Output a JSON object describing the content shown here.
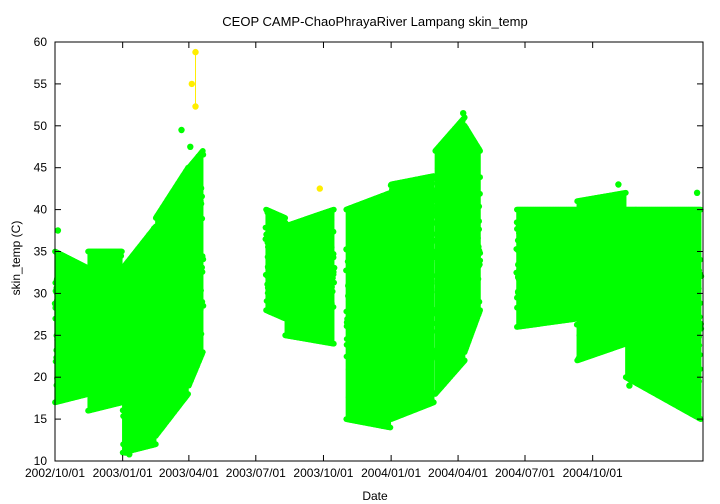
{
  "chart_data": {
    "type": "scatter",
    "title": "CEOP CAMP-ChaoPhrayaRiver Lampang  skin_temp",
    "xlabel": "Date",
    "ylabel": "skin_temp (C)",
    "ylim": [
      10,
      60
    ],
    "xlim": [
      "2002-10-01",
      "2005-02-28"
    ],
    "y_ticks": [
      10,
      15,
      20,
      25,
      30,
      35,
      40,
      45,
      50,
      55,
      60
    ],
    "x_ticks": [
      {
        "date": "2002-10-01",
        "label": "2002/10/01"
      },
      {
        "date": "2003-01-01",
        "label": "2003/01/01"
      },
      {
        "date": "2003-04-01",
        "label": "2003/04/01"
      },
      {
        "date": "2003-07-01",
        "label": "2003/07/01"
      },
      {
        "date": "2003-10-01",
        "label": "2003/10/01"
      },
      {
        "date": "2004-01-01",
        "label": "2004/01/01"
      },
      {
        "date": "2004-04-01",
        "label": "2004/04/01"
      },
      {
        "date": "2004-07-01",
        "label": "2004/07/01"
      },
      {
        "date": "2004-10-01",
        "label": "2004/10/01"
      }
    ],
    "grid": false,
    "colors": {
      "main": "#00ff00",
      "flagged": "#ffee00"
    },
    "series": [
      {
        "segments": [
          {
            "start": "2002-10-01",
            "end": "2002-11-15",
            "min": [
              17,
              18
            ],
            "max": [
              35,
              33
            ]
          },
          {
            "start": "2002-11-15",
            "end": "2002-12-31",
            "min": [
              16,
              17
            ],
            "max": [
              35,
              35
            ]
          },
          {
            "start": "2003-01-01",
            "end": "2003-02-15",
            "min": [
              11,
              12
            ],
            "max": [
              33,
              38
            ]
          },
          {
            "start": "2003-02-15",
            "end": "2003-03-31",
            "min": [
              13,
              18
            ],
            "max": [
              39,
              45
            ]
          },
          {
            "start": "2003-04-01",
            "end": "2003-04-20",
            "min": [
              19,
              23
            ],
            "max": [
              45,
              47
            ]
          },
          {
            "start": "2003-07-15",
            "end": "2003-08-10",
            "min": [
              28,
              27
            ],
            "max": [
              40,
              39
            ]
          },
          {
            "start": "2003-08-10",
            "end": "2003-10-15",
            "min": [
              25,
              24
            ],
            "max": [
              38,
              40
            ]
          },
          {
            "start": "2003-11-01",
            "end": "2003-12-31",
            "min": [
              15,
              14
            ],
            "max": [
              40,
              42
            ]
          },
          {
            "start": "2004-01-01",
            "end": "2004-02-28",
            "min": [
              15,
              17
            ],
            "max": [
              43,
              44
            ]
          },
          {
            "start": "2004-03-01",
            "end": "2004-04-10",
            "min": [
              18,
              22
            ],
            "max": [
              47,
              51
            ]
          },
          {
            "start": "2004-04-10",
            "end": "2004-05-01",
            "min": [
              23,
              28
            ],
            "max": [
              50,
              47
            ]
          },
          {
            "start": "2004-06-20",
            "end": "2004-09-10",
            "min": [
              26,
              27
            ],
            "max": [
              40,
              40
            ]
          },
          {
            "start": "2004-09-10",
            "end": "2004-11-15",
            "min": [
              22,
              24
            ],
            "max": [
              41,
              42
            ]
          },
          {
            "start": "2004-11-15",
            "end": "2005-02-25",
            "min": [
              20,
              15
            ],
            "max": [
              40,
              40
            ]
          }
        ],
        "peaks": [
          {
            "date": "2002-10-05",
            "value": 37.5
          },
          {
            "date": "2003-03-22",
            "value": 49.5
          },
          {
            "date": "2003-04-03",
            "value": 47.5
          },
          {
            "date": "2003-01-10",
            "value": 10.8
          },
          {
            "date": "2003-01-05",
            "value": 11.0
          },
          {
            "date": "2004-04-08",
            "value": 51.5
          },
          {
            "date": "2004-04-05",
            "value": 50.0
          },
          {
            "date": "2004-11-05",
            "value": 43.0
          },
          {
            "date": "2005-02-20",
            "value": 42.0
          },
          {
            "date": "2004-11-20",
            "value": 19.0
          }
        ]
      },
      {
        "name": "",
        "points": [
          {
            "date": "2003-04-10",
            "value": 58.8
          },
          {
            "date": "2003-04-05",
            "value": 55.0
          },
          {
            "date": "2003-04-10",
            "value": 52.3
          },
          {
            "date": "2003-09-26",
            "value": 42.5
          }
        ]
      }
    ]
  }
}
